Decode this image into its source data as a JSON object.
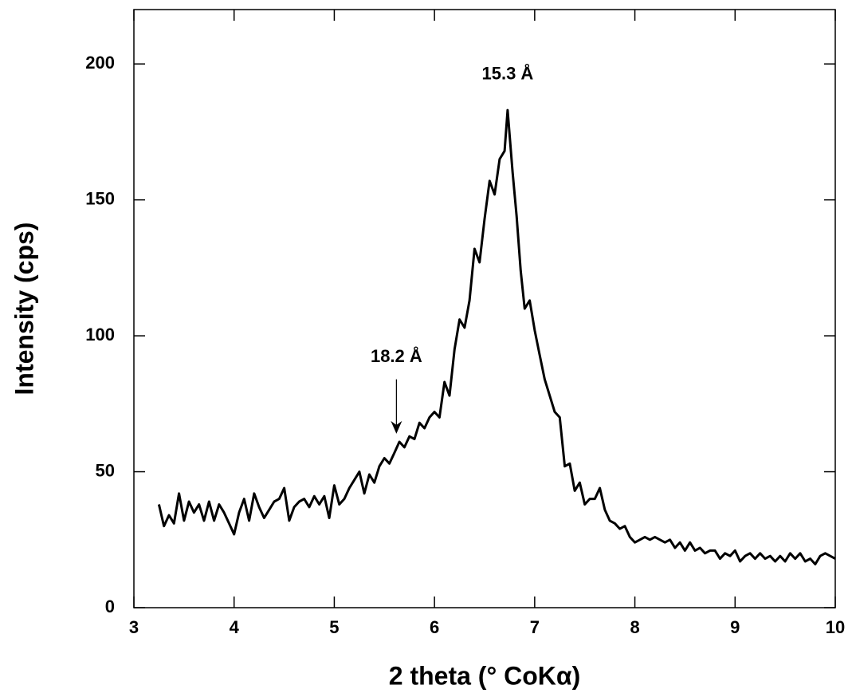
{
  "chart_data": {
    "type": "line",
    "xlabel": "2 theta (° CoKα)",
    "ylabel": "Intensity (cps)",
    "xlim": [
      3,
      10
    ],
    "xticks": [
      3,
      4,
      5,
      6,
      7,
      8,
      9,
      10
    ],
    "ylim": [
      0,
      220
    ],
    "yticks": [
      0,
      50,
      100,
      150,
      200
    ],
    "color": "#000000",
    "x": [
      3.25,
      3.3,
      3.35,
      3.4,
      3.45,
      3.5,
      3.55,
      3.6,
      3.65,
      3.7,
      3.75,
      3.8,
      3.85,
      3.9,
      3.95,
      4.0,
      4.05,
      4.1,
      4.15,
      4.2,
      4.25,
      4.3,
      4.35,
      4.4,
      4.45,
      4.5,
      4.55,
      4.6,
      4.65,
      4.7,
      4.75,
      4.8,
      4.85,
      4.9,
      4.95,
      5.0,
      5.05,
      5.1,
      5.15,
      5.2,
      5.25,
      5.3,
      5.35,
      5.4,
      5.45,
      5.5,
      5.55,
      5.6,
      5.65,
      5.7,
      5.75,
      5.8,
      5.85,
      5.9,
      5.95,
      6.0,
      6.05,
      6.1,
      6.15,
      6.2,
      6.25,
      6.3,
      6.35,
      6.4,
      6.45,
      6.5,
      6.55,
      6.6,
      6.65,
      6.7,
      6.73,
      6.78,
      6.82,
      6.86,
      6.9,
      6.95,
      7.0,
      7.05,
      7.1,
      7.15,
      7.2,
      7.25,
      7.3,
      7.35,
      7.4,
      7.45,
      7.5,
      7.55,
      7.6,
      7.65,
      7.7,
      7.75,
      7.8,
      7.85,
      7.9,
      7.95,
      8.0,
      8.05,
      8.1,
      8.15,
      8.2,
      8.25,
      8.3,
      8.35,
      8.4,
      8.45,
      8.5,
      8.55,
      8.6,
      8.65,
      8.7,
      8.75,
      8.8,
      8.85,
      8.9,
      8.95,
      9.0,
      9.05,
      9.1,
      9.15,
      9.2,
      9.25,
      9.3,
      9.35,
      9.4,
      9.45,
      9.5,
      9.55,
      9.6,
      9.65,
      9.7,
      9.75,
      9.8,
      9.85,
      9.9,
      9.95,
      10.0
    ],
    "values": [
      38,
      30,
      34,
      31,
      42,
      32,
      39,
      35,
      38,
      32,
      39,
      32,
      38,
      35,
      31,
      27,
      35,
      40,
      32,
      42,
      37,
      33,
      36,
      39,
      40,
      44,
      32,
      37,
      39,
      40,
      37,
      41,
      38,
      41,
      33,
      45,
      38,
      40,
      44,
      47,
      50,
      42,
      49,
      46,
      52,
      55,
      53,
      57,
      61,
      59,
      63,
      62,
      68,
      66,
      70,
      72,
      70,
      83,
      78,
      95,
      106,
      103,
      113,
      132,
      127,
      143,
      157,
      152,
      165,
      168,
      183,
      160,
      144,
      124,
      110,
      113,
      102,
      93,
      84,
      78,
      72,
      70,
      52,
      53,
      43,
      46,
      38,
      40,
      40,
      44,
      36,
      32,
      31,
      29,
      30,
      26,
      24,
      25,
      26,
      25,
      26,
      25,
      24,
      25,
      22,
      24,
      21,
      24,
      21,
      22,
      20,
      21,
      21,
      18,
      20,
      19,
      21,
      17,
      19,
      20,
      18,
      20,
      18,
      19,
      17,
      19,
      17,
      20,
      18,
      20,
      17,
      18,
      16,
      19,
      20,
      19,
      18
    ],
    "annotations": [
      {
        "text": "15.3 Å",
        "x": 6.73,
        "y": 196
      },
      {
        "text": "18.2 Å",
        "x": 5.62,
        "y": 92,
        "arrow_from": 84,
        "arrow_to": 64
      }
    ]
  }
}
